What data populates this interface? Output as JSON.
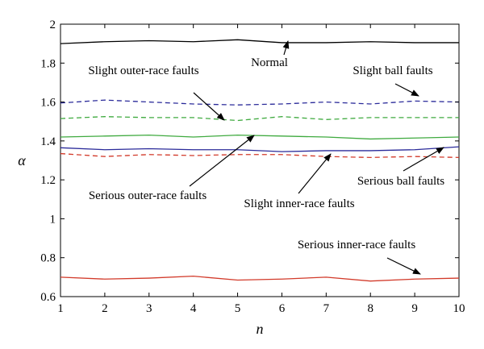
{
  "chart_data": {
    "type": "line",
    "title": "",
    "xlabel": "n",
    "ylabel": "α",
    "xlim": [
      1,
      10
    ],
    "ylim": [
      0.6,
      2
    ],
    "grid": false,
    "legend": "none",
    "x": [
      1,
      2,
      3,
      4,
      5,
      6,
      7,
      8,
      9,
      10
    ],
    "xticks": [
      "1",
      "2",
      "3",
      "4",
      "5",
      "6",
      "7",
      "8",
      "9",
      "10"
    ],
    "yticks": [
      {
        "value": 0.6,
        "label": "0.6"
      },
      {
        "value": 0.8,
        "label": "0.8"
      },
      {
        "value": 1.0,
        "label": "1"
      },
      {
        "value": 1.2,
        "label": "1.2"
      },
      {
        "value": 1.4,
        "label": "1.4"
      },
      {
        "value": 1.6,
        "label": "1.6"
      },
      {
        "value": 1.8,
        "label": "1.8"
      },
      {
        "value": 2.0,
        "label": "2"
      }
    ],
    "series": [
      {
        "name": "Normal",
        "color": "#000000",
        "dashed": false,
        "values": [
          1.9,
          1.91,
          1.915,
          1.91,
          1.92,
          1.905,
          1.905,
          1.91,
          1.905,
          1.905
        ]
      },
      {
        "name": "Slight ball faults",
        "color": "#2b2b9a",
        "dashed": true,
        "values": [
          1.595,
          1.61,
          1.6,
          1.59,
          1.585,
          1.59,
          1.6,
          1.59,
          1.605,
          1.6
        ]
      },
      {
        "name": "Slight outer-race faults",
        "color": "#3faa3f",
        "dashed": true,
        "values": [
          1.515,
          1.525,
          1.52,
          1.52,
          1.505,
          1.525,
          1.51,
          1.52,
          1.52,
          1.52
        ]
      },
      {
        "name": "",
        "color": "#3faa3f",
        "dashed": false,
        "values": [
          1.42,
          1.425,
          1.43,
          1.42,
          1.43,
          1.425,
          1.42,
          1.41,
          1.415,
          1.42
        ]
      },
      {
        "name": "Serious ball faults",
        "color": "#2b2b9a",
        "dashed": false,
        "values": [
          1.365,
          1.355,
          1.36,
          1.355,
          1.355,
          1.345,
          1.35,
          1.35,
          1.355,
          1.37
        ]
      },
      {
        "name": "Slight inner-race faults",
        "color": "#d23a2a",
        "dashed": true,
        "values": [
          1.335,
          1.32,
          1.33,
          1.325,
          1.33,
          1.33,
          1.32,
          1.315,
          1.32,
          1.315
        ]
      },
      {
        "name": "Serious inner-race faults",
        "color": "#d23a2a",
        "dashed": false,
        "values": [
          0.7,
          0.69,
          0.695,
          0.705,
          0.685,
          0.69,
          0.7,
          0.68,
          0.69,
          0.695
        ]
      }
    ],
    "annotations": [
      {
        "text": "Normal"
      },
      {
        "text": "Slight outer-race faults"
      },
      {
        "text": "Slight ball faults"
      },
      {
        "text": "Serious ball faults"
      },
      {
        "text": "Serious outer-race faults"
      },
      {
        "text": "Slight inner-race faults"
      },
      {
        "text": "Serious inner-race faults"
      }
    ]
  }
}
